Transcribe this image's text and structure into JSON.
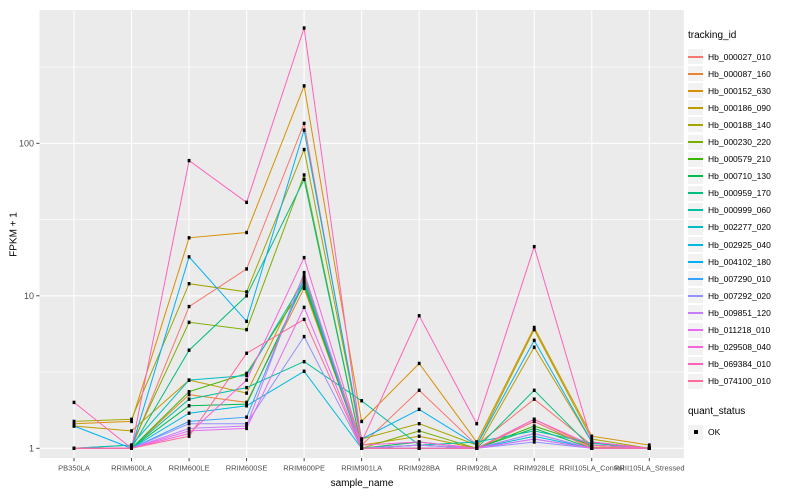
{
  "figure": {
    "background": "#FFFFFF",
    "panel_background": "#EBEBEB",
    "grid_color": "#FFFFFF",
    "legend_key_background": "#F2F2F2",
    "tick_label_color": "#4D4D4D",
    "point_color": "#000000"
  },
  "chart_data": {
    "type": "line",
    "title": "",
    "xlabel": "sample_name",
    "ylabel": "FPKM + 1",
    "y_scale": "log10",
    "y_ticks": [
      1,
      10,
      100
    ],
    "y_minor_ticks": [
      3.162,
      31.62,
      316.2
    ],
    "ylim": [
      0.86,
      750
    ],
    "grid": "on",
    "legend_position": "right",
    "categories": [
      "PB350LA",
      "RRIM600LA",
      "RRIM600LE",
      "RRIM600SE",
      "RRIM600PE",
      "RRIM901LA",
      "RRIM928BA",
      "RRIM928LA",
      "RRIM928LE",
      "RRII105LA_Control",
      "RRII105LA_Stressed"
    ],
    "series": [
      {
        "name": "Hb_000027_010",
        "color": "#F8766D",
        "values": [
          1.0,
          1.0,
          8.5,
          15,
          135,
          1.05,
          2.4,
          1.05,
          2.1,
          1.05,
          1.0
        ]
      },
      {
        "name": "Hb_000087_160",
        "color": "#EA8331",
        "values": [
          1.0,
          1.0,
          2.25,
          2.0,
          11.2,
          1.0,
          1.1,
          1.0,
          1.55,
          1.02,
          1.0
        ]
      },
      {
        "name": "Hb_000152_630",
        "color": "#D89000",
        "values": [
          1.45,
          1.5,
          24,
          26,
          238,
          1.5,
          3.6,
          1.1,
          6.2,
          1.2,
          1.05
        ]
      },
      {
        "name": "Hb_000186_090",
        "color": "#C09B00",
        "values": [
          1.4,
          1.3,
          2.8,
          2.3,
          13.5,
          1.05,
          1.2,
          1.0,
          4.6,
          1.1,
          1.0
        ]
      },
      {
        "name": "Hb_000188_140",
        "color": "#A3A500",
        "values": [
          1.5,
          1.55,
          12,
          10.6,
          91,
          1.15,
          1.45,
          1.05,
          6.0,
          1.15,
          1.0
        ]
      },
      {
        "name": "Hb_000230_220",
        "color": "#7CAE00",
        "values": [
          1.0,
          1.05,
          6.7,
          6.0,
          62,
          1.0,
          1.3,
          1.0,
          1.5,
          1.0,
          1.0
        ]
      },
      {
        "name": "Hb_000579_210",
        "color": "#39B600",
        "values": [
          1.0,
          1.0,
          2.35,
          3.1,
          11.7,
          1.0,
          1.05,
          1.0,
          1.4,
          1.05,
          1.0
        ]
      },
      {
        "name": "Hb_000710_130",
        "color": "#00BB4E",
        "values": [
          1.0,
          1.0,
          1.9,
          1.95,
          12.2,
          1.0,
          1.0,
          1.0,
          1.35,
          1.0,
          1.0
        ]
      },
      {
        "name": "Hb_000959_170",
        "color": "#00BF7D",
        "values": [
          1.0,
          1.0,
          4.4,
          10.0,
          58,
          1.0,
          1.1,
          1.0,
          2.4,
          1.0,
          1.0
        ]
      },
      {
        "name": "Hb_000999_060",
        "color": "#00C1A3",
        "values": [
          1.0,
          1.0,
          2.1,
          2.5,
          3.7,
          2.05,
          1.05,
          1.1,
          1.3,
          1.08,
          1.0
        ]
      },
      {
        "name": "Hb_002277_020",
        "color": "#00BFC4",
        "values": [
          1.0,
          1.05,
          2.8,
          3.0,
          12.7,
          1.0,
          1.05,
          1.0,
          1.25,
          1.0,
          1.0
        ]
      },
      {
        "name": "Hb_002925_040",
        "color": "#00BAE0",
        "values": [
          1.0,
          1.0,
          1.7,
          1.9,
          3.2,
          1.0,
          1.0,
          1.0,
          1.2,
          1.0,
          1.0
        ]
      },
      {
        "name": "Hb_004102_180",
        "color": "#00B0F6",
        "values": [
          1.4,
          1.0,
          18,
          6.8,
          122,
          1.15,
          1.8,
          1.05,
          5.1,
          1.1,
          1.0
        ]
      },
      {
        "name": "Hb_007290_010",
        "color": "#35A2FF",
        "values": [
          1.0,
          1.0,
          1.5,
          1.6,
          13.0,
          1.0,
          1.05,
          1.0,
          1.15,
          1.0,
          1.0
        ]
      },
      {
        "name": "Hb_007292_020",
        "color": "#9590FF",
        "values": [
          1.0,
          1.0,
          1.45,
          1.45,
          5.4,
          1.0,
          1.0,
          1.0,
          1.1,
          1.0,
          1.0
        ]
      },
      {
        "name": "Hb_009851_120",
        "color": "#C77CFF",
        "values": [
          1.0,
          1.0,
          1.35,
          1.4,
          14.2,
          1.0,
          1.05,
          1.0,
          1.25,
          1.0,
          1.0
        ]
      },
      {
        "name": "Hb_011218_010",
        "color": "#E76BF3",
        "values": [
          1.0,
          1.0,
          1.3,
          1.35,
          8.4,
          1.0,
          1.0,
          1.0,
          1.15,
          1.0,
          1.0
        ]
      },
      {
        "name": "Hb_029508_040",
        "color": "#FA62DB",
        "values": [
          1.0,
          1.0,
          1.25,
          2.8,
          17.8,
          1.05,
          1.1,
          1.0,
          1.55,
          1.05,
          1.0
        ]
      },
      {
        "name": "Hb_069384_010",
        "color": "#FF62BC",
        "values": [
          2.0,
          1.0,
          77,
          41,
          570,
          1.1,
          7.4,
          1.45,
          21,
          1.1,
          1.0
        ]
      },
      {
        "name": "Hb_074100_010",
        "color": "#FF6A98",
        "values": [
          1.0,
          1.0,
          1.2,
          4.2,
          7.0,
          1.0,
          1.0,
          1.0,
          1.5,
          1.0,
          1.0
        ]
      }
    ],
    "legend": {
      "color_title": "tracking_id",
      "shape_title": "quant_status",
      "shape_items": [
        {
          "label": "OK"
        }
      ]
    }
  }
}
